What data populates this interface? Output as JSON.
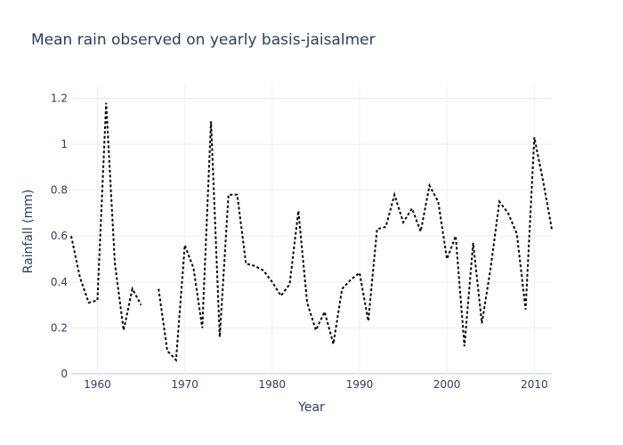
{
  "chart_data": {
    "type": "line",
    "title": "Mean rain observed on yearly basis-jaisalmer",
    "xlabel": "Year",
    "ylabel": "Rainfall (mm)",
    "xlim": [
      1957,
      2012
    ],
    "ylim": [
      0,
      1.26
    ],
    "xticks": [
      1960,
      1970,
      1980,
      1990,
      2000,
      2010
    ],
    "xtick_labels": [
      "1960",
      "1970",
      "1980",
      "1990",
      "2000",
      "2010"
    ],
    "yticks": [
      0,
      0.2,
      0.4,
      0.6,
      0.8,
      1,
      1.2
    ],
    "ytick_labels": [
      "0",
      "0.2",
      "0.4",
      "0.6",
      "0.8",
      "1",
      "1.2"
    ],
    "grid": true,
    "line_color": "#000000",
    "line_style": "dotted",
    "series": [
      {
        "x": [
          1957,
          1958,
          1959,
          1960,
          1961,
          1962,
          1963,
          1964,
          1965,
          1966,
          1967,
          1968,
          1969,
          1970,
          1971,
          1972,
          1973,
          1974,
          1975,
          1976,
          1977,
          1978,
          1979,
          1980,
          1981,
          1982,
          1983,
          1984,
          1985,
          1986,
          1987,
          1988,
          1989,
          1990,
          1991,
          1992,
          1993,
          1994,
          1995,
          1996,
          1997,
          1998,
          1999,
          2000,
          2001,
          2002,
          2003,
          2004,
          2005,
          2006,
          2007,
          2008,
          2009,
          2010,
          2011,
          2012
        ],
        "values": [
          0.6,
          0.42,
          0.31,
          0.32,
          1.18,
          0.48,
          0.19,
          0.37,
          0.3,
          null,
          0.37,
          0.1,
          0.06,
          0.56,
          0.46,
          0.2,
          1.1,
          0.16,
          0.78,
          0.78,
          0.48,
          0.47,
          0.45,
          0.4,
          0.34,
          0.39,
          0.71,
          0.31,
          0.19,
          0.27,
          0.13,
          0.37,
          0.41,
          0.44,
          0.23,
          0.63,
          0.64,
          0.78,
          0.66,
          0.72,
          0.62,
          0.82,
          0.75,
          0.5,
          0.6,
          0.12,
          0.57,
          0.22,
          0.46,
          0.75,
          0.7,
          0.61,
          0.28,
          1.03,
          0.84,
          0.63
        ]
      }
    ]
  }
}
